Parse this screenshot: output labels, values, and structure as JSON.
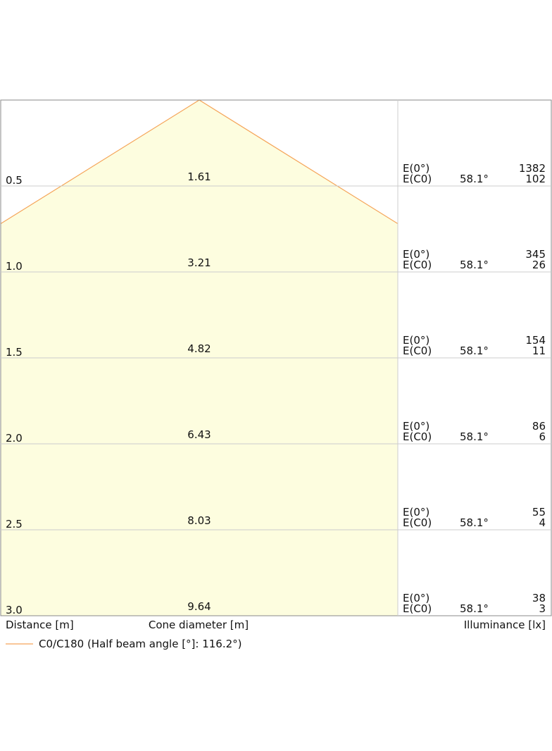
{
  "chart_data": {
    "type": "area",
    "title": "",
    "x_axis_label": "Distance [m]",
    "cone_label": "Cone diameter [m]",
    "right_label": "Illuminance [lx]",
    "row_labels": [
      "E(0°)",
      "E(C0)"
    ],
    "legend": "C0/C180 (Half beam angle [°]: 116.2°)",
    "half_beam_angle_deg": 116.2,
    "rows": [
      {
        "distance": "0.5",
        "cone_diameter": "1.61",
        "angle": "58.1°",
        "e0": "1382",
        "ec0": "102"
      },
      {
        "distance": "1.0",
        "cone_diameter": "3.21",
        "angle": "58.1°",
        "e0": "345",
        "ec0": "26"
      },
      {
        "distance": "1.5",
        "cone_diameter": "4.82",
        "angle": "58.1°",
        "e0": "154",
        "ec0": "11"
      },
      {
        "distance": "2.0",
        "cone_diameter": "6.43",
        "angle": "58.1°",
        "e0": "86",
        "ec0": "6"
      },
      {
        "distance": "2.5",
        "cone_diameter": "8.03",
        "angle": "58.1°",
        "e0": "55",
        "ec0": "4"
      },
      {
        "distance": "3.0",
        "cone_diameter": "9.64",
        "angle": "58.1°",
        "e0": "38",
        "ec0": "3"
      }
    ],
    "colors": {
      "cone_fill": "#fdfddf",
      "cone_line": "#f5a55a",
      "grid": "#cccccc",
      "frame": "#888888"
    }
  }
}
